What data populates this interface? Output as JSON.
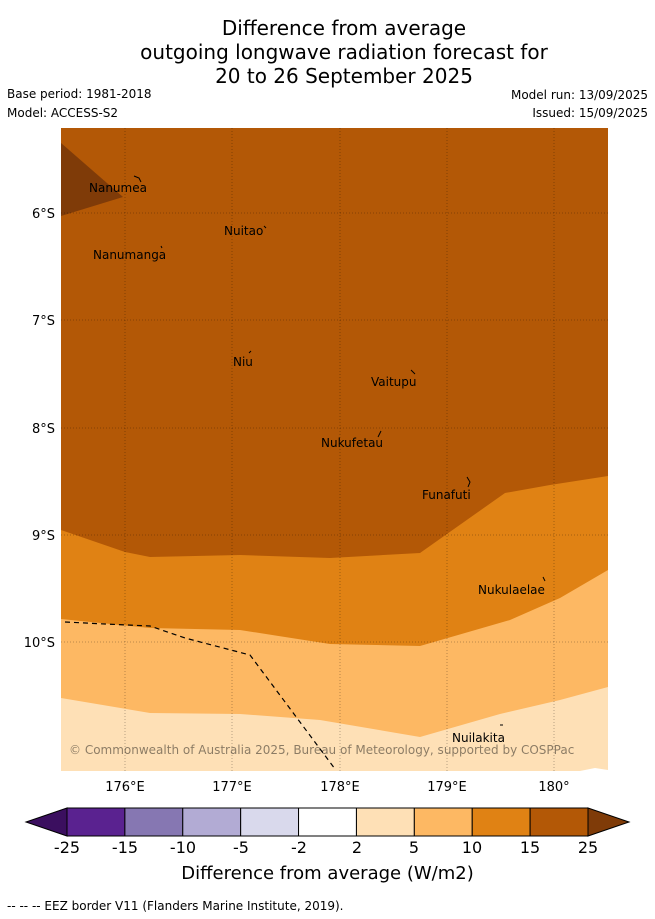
{
  "title": {
    "line1": "Difference from average",
    "line2": "outgoing longwave radiation forecast for",
    "line3": "20 to 26 September 2025"
  },
  "meta": {
    "base_period": "Base period: 1981-2018",
    "model": "Model: ACCESS-S2",
    "model_run": "Model run: 13/09/2025",
    "issued": "Issued: 15/09/2025"
  },
  "map": {
    "lon_ticks": [
      "176°E",
      "177°E",
      "178°E",
      "179°E",
      "180°"
    ],
    "lat_ticks": [
      "6°S",
      "7°S",
      "8°S",
      "9°S",
      "10°S"
    ],
    "places": [
      "Nanumea",
      "Nuitao",
      "Nanumanga",
      "Niu",
      "Vaitupu",
      "Nukufetau",
      "Funafuti",
      "Nukulaelae",
      "Nuilakita"
    ],
    "copyright": "© Commonwealth of Australia 2025, Bureau of Meteorology, supported by COSPPac"
  },
  "colorbar": {
    "labels": [
      "-25",
      "-15",
      "-10",
      "-5",
      "-2",
      "2",
      "5",
      "10",
      "15",
      "25"
    ],
    "colors": [
      "#5a2290",
      "#8677b2",
      "#b2abd4",
      "#d9d9ec",
      "#ffffff",
      "#fee0b6",
      "#fdb863",
      "#e08214",
      "#b35806"
    ],
    "under_color": "#3b0f5f",
    "over_color": "#7f3b08",
    "title": "Difference from average (W/m2)"
  },
  "footer": {
    "eez_legend": "--  --  -- EEZ border V11 (Flanders Marine Institute, 2019)."
  }
}
